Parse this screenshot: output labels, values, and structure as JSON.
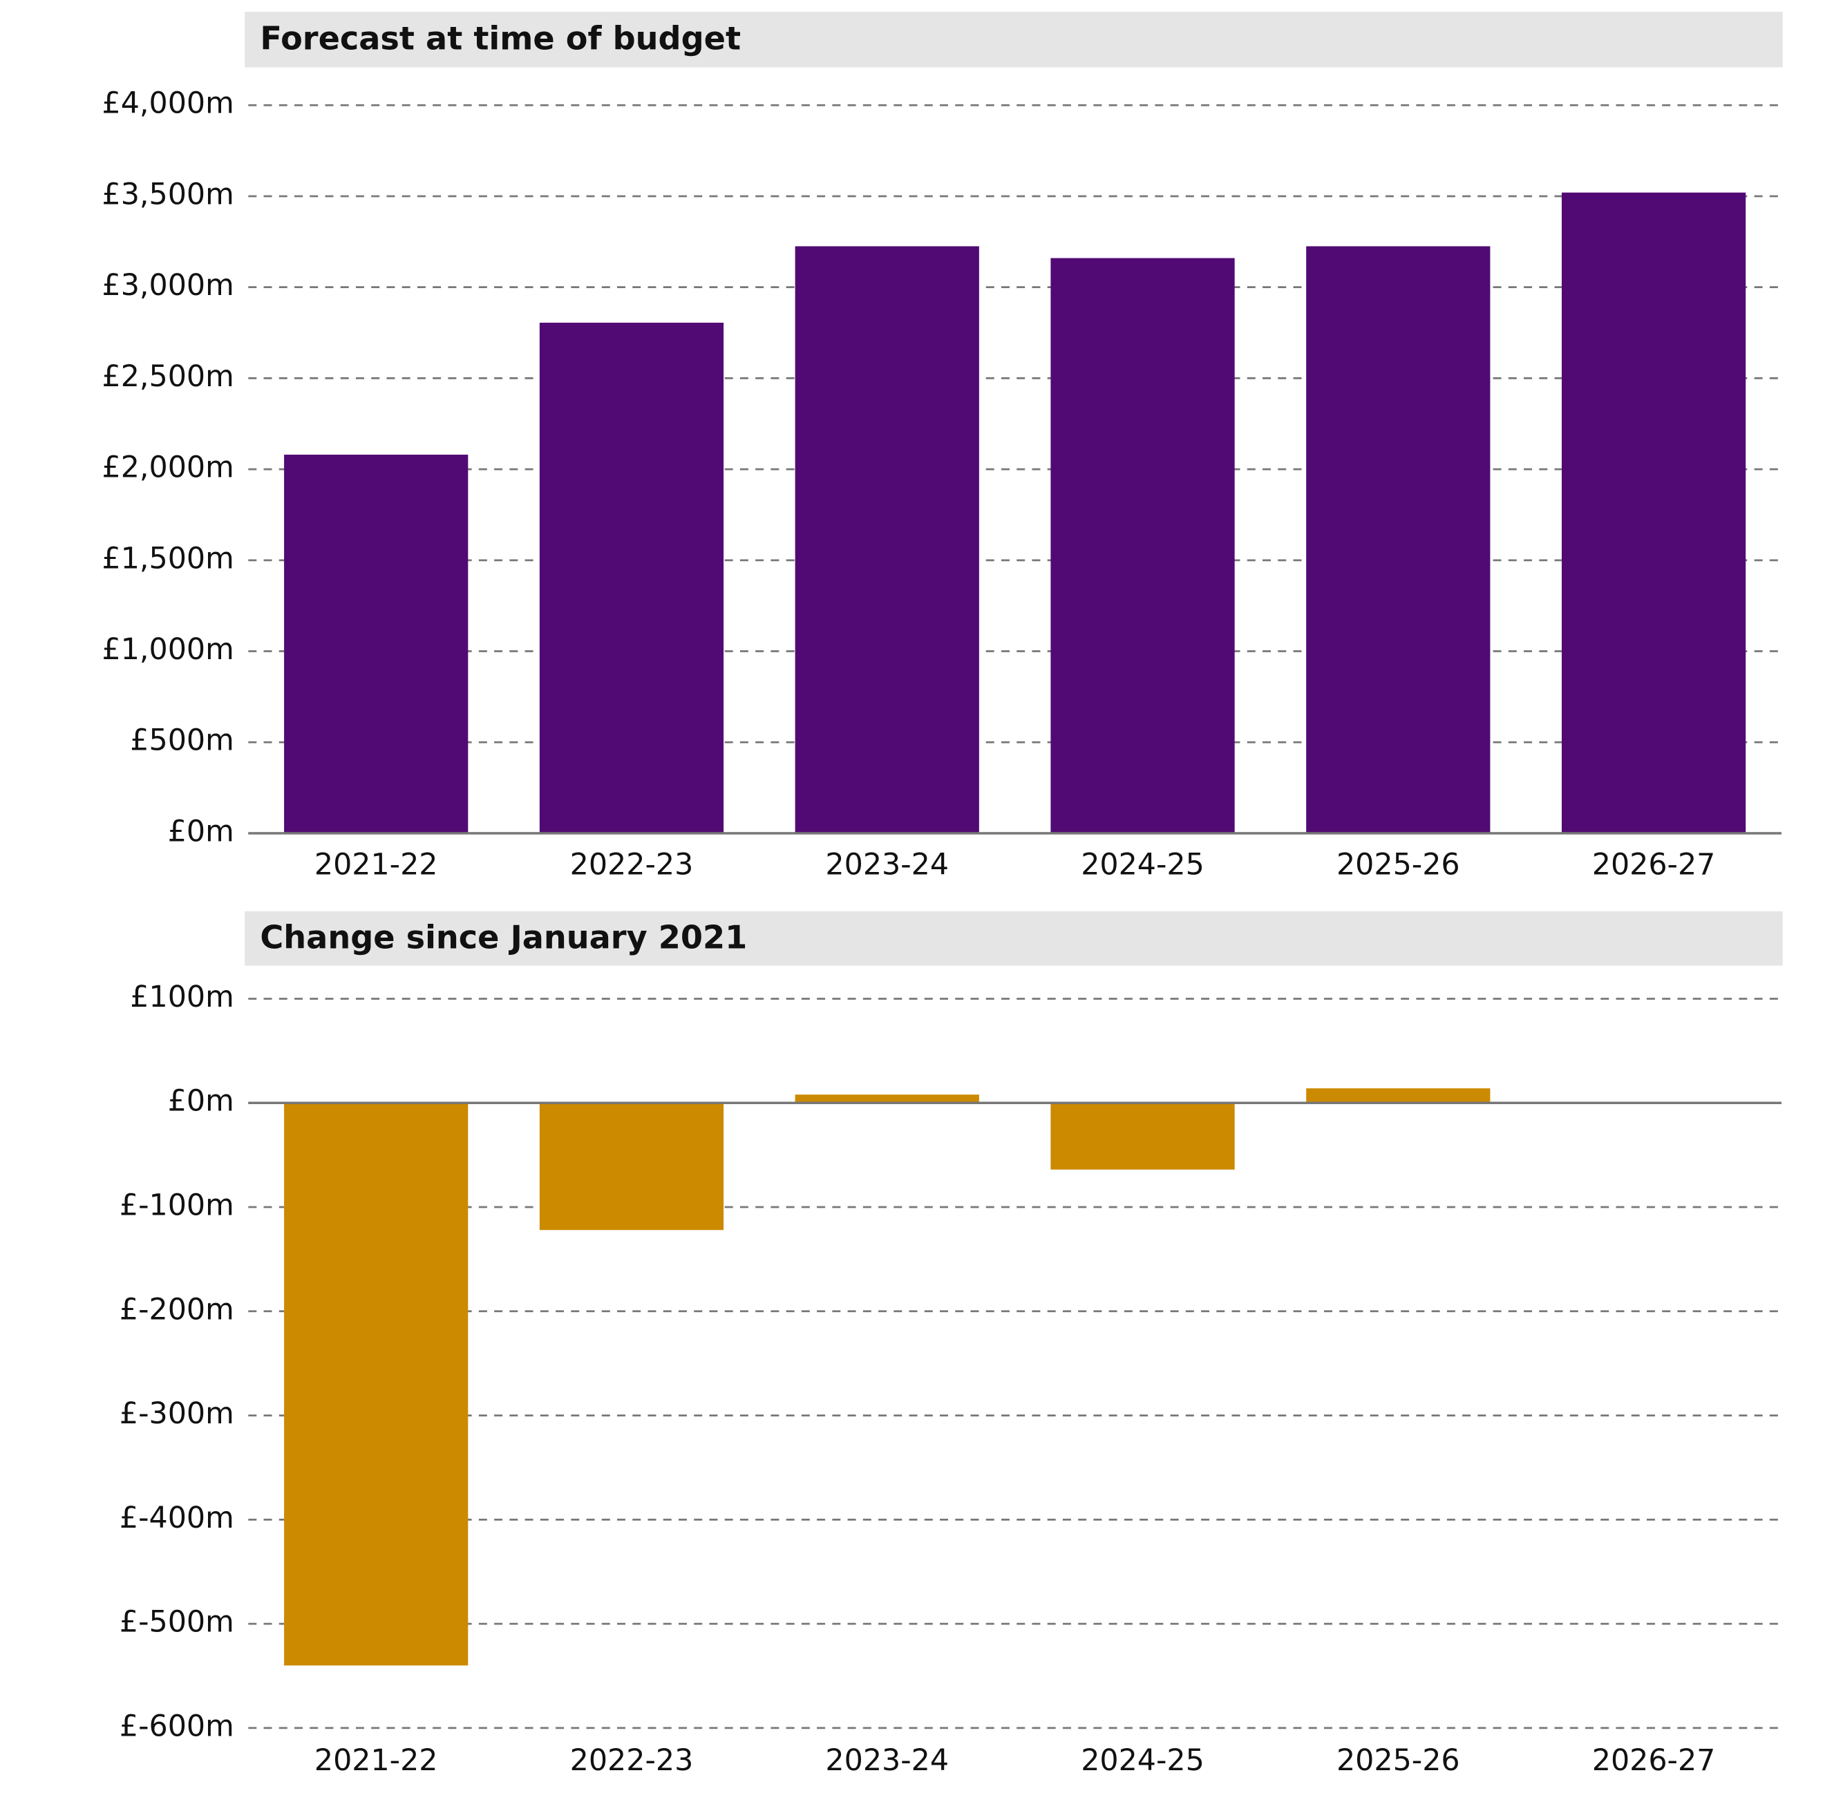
{
  "chart_data": [
    {
      "type": "bar",
      "title": "Forecast at time of budget",
      "categories": [
        "2021-22",
        "2022-23",
        "2023-24",
        "2024-25",
        "2025-26",
        "2026-27"
      ],
      "values": [
        2080,
        2805,
        3225,
        3160,
        3225,
        3520
      ],
      "color": "#510a73",
      "ylim": [
        0,
        4000
      ],
      "yticks": [
        {
          "value": 0,
          "label": "£0m"
        },
        {
          "value": 500,
          "label": "£500m"
        },
        {
          "value": 1000,
          "label": "£1,000m"
        },
        {
          "value": 1500,
          "label": "£1,500m"
        },
        {
          "value": 2000,
          "label": "£2,000m"
        },
        {
          "value": 2500,
          "label": "£2,500m"
        },
        {
          "value": 3000,
          "label": "£3,000m"
        },
        {
          "value": 3500,
          "label": "£3,500m"
        },
        {
          "value": 4000,
          "label": "£4,000m"
        }
      ],
      "grid": true
    },
    {
      "type": "bar",
      "title": "Change since January 2021",
      "categories": [
        "2021-22",
        "2022-23",
        "2023-24",
        "2024-25",
        "2025-26",
        "2026-27"
      ],
      "values": [
        -540,
        -122,
        8,
        -64,
        14,
        0
      ],
      "color": "#cc8a00",
      "ylim": [
        -600,
        100
      ],
      "yticks": [
        {
          "value": -600,
          "label": "£-600m"
        },
        {
          "value": -500,
          "label": "£-500m"
        },
        {
          "value": -400,
          "label": "£-400m"
        },
        {
          "value": -300,
          "label": "£-300m"
        },
        {
          "value": -200,
          "label": "£-200m"
        },
        {
          "value": -100,
          "label": "£-100m"
        },
        {
          "value": 0,
          "label": "£0m"
        },
        {
          "value": 100,
          "label": "£100m"
        }
      ],
      "grid": true
    }
  ]
}
